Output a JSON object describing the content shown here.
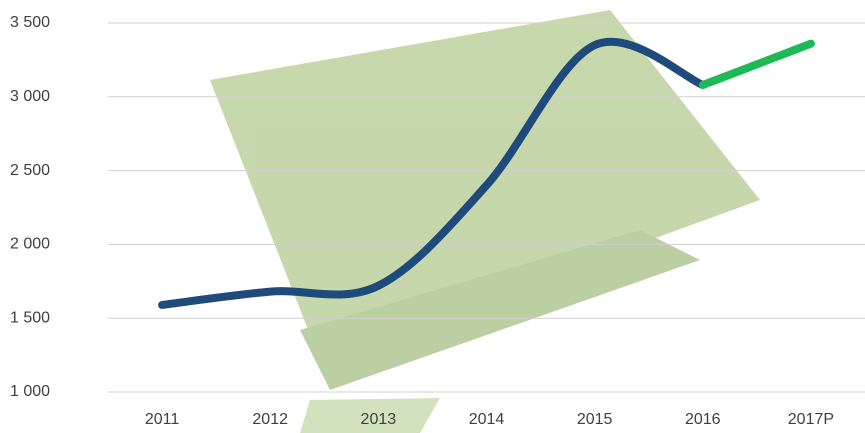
{
  "chart_data": {
    "type": "line",
    "categories": [
      "2011",
      "2012",
      "2013",
      "2014",
      "2015",
      "2016",
      "2017P"
    ],
    "series": [
      {
        "color": "#1f4a7c",
        "values": [
          1590,
          1680,
          1720,
          2400,
          3350,
          3080,
          null
        ]
      },
      {
        "color": "#1db954",
        "values": [
          null,
          null,
          null,
          null,
          null,
          3080,
          3360
        ]
      }
    ],
    "ylim": [
      1000,
      3500
    ],
    "yticks": [
      {
        "value": 1000,
        "label": "1 000"
      },
      {
        "value": 1500,
        "label": "1 500"
      },
      {
        "value": 2000,
        "label": "2 000"
      },
      {
        "value": 2500,
        "label": "2 500"
      },
      {
        "value": 3000,
        "label": "3 000"
      },
      {
        "value": 3500,
        "label": "3 500"
      }
    ],
    "grid": true
  }
}
